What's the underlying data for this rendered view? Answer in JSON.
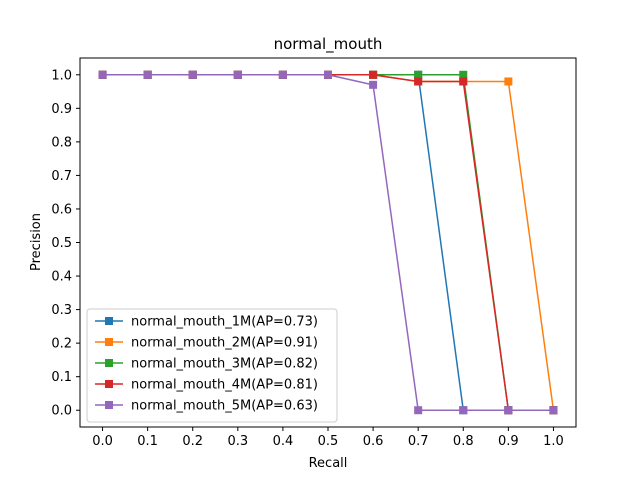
{
  "chart_data": {
    "type": "line",
    "title": "normal_mouth",
    "xlabel": "Recall",
    "ylabel": "Precision",
    "xlim": [
      -0.05,
      1.05
    ],
    "ylim": [
      -0.05,
      1.05
    ],
    "xticks": [
      "0.0",
      "0.1",
      "0.2",
      "0.3",
      "0.4",
      "0.5",
      "0.6",
      "0.7",
      "0.8",
      "0.9",
      "1.0"
    ],
    "yticks": [
      "0.0",
      "0.1",
      "0.2",
      "0.3",
      "0.4",
      "0.5",
      "0.6",
      "0.7",
      "0.8",
      "0.9",
      "1.0"
    ],
    "grid": false,
    "legend_position": "lower-left",
    "series": [
      {
        "name": "normal_mouth_1M(AP=0.73)",
        "color": "#1f77b4",
        "x": [
          0.0,
          0.1,
          0.2,
          0.3,
          0.4,
          0.5,
          0.6,
          0.7,
          0.8,
          0.9,
          1.0
        ],
        "y": [
          1.0,
          1.0,
          1.0,
          1.0,
          1.0,
          1.0,
          1.0,
          1.0,
          0.0,
          0.0,
          0.0
        ]
      },
      {
        "name": "normal_mouth_2M(AP=0.91)",
        "color": "#ff7f0e",
        "x": [
          0.0,
          0.1,
          0.2,
          0.3,
          0.4,
          0.5,
          0.6,
          0.7,
          0.8,
          0.9,
          1.0
        ],
        "y": [
          1.0,
          1.0,
          1.0,
          1.0,
          1.0,
          1.0,
          1.0,
          0.98,
          0.98,
          0.98,
          0.0
        ]
      },
      {
        "name": "normal_mouth_3M(AP=0.82)",
        "color": "#2ca02c",
        "x": [
          0.0,
          0.1,
          0.2,
          0.3,
          0.4,
          0.5,
          0.6,
          0.7,
          0.8,
          0.9,
          1.0
        ],
        "y": [
          1.0,
          1.0,
          1.0,
          1.0,
          1.0,
          1.0,
          1.0,
          1.0,
          1.0,
          0.0,
          0.0
        ]
      },
      {
        "name": "normal_mouth_4M(AP=0.81)",
        "color": "#d62728",
        "x": [
          0.0,
          0.1,
          0.2,
          0.3,
          0.4,
          0.5,
          0.6,
          0.7,
          0.8,
          0.9,
          1.0
        ],
        "y": [
          1.0,
          1.0,
          1.0,
          1.0,
          1.0,
          1.0,
          1.0,
          0.98,
          0.98,
          0.0,
          0.0
        ]
      },
      {
        "name": "normal_mouth_5M(AP=0.63)",
        "color": "#9467bd",
        "x": [
          0.0,
          0.1,
          0.2,
          0.3,
          0.4,
          0.5,
          0.6,
          0.7,
          0.8,
          0.9,
          1.0
        ],
        "y": [
          1.0,
          1.0,
          1.0,
          1.0,
          1.0,
          1.0,
          0.97,
          0.0,
          0.0,
          0.0,
          0.0
        ]
      }
    ]
  }
}
